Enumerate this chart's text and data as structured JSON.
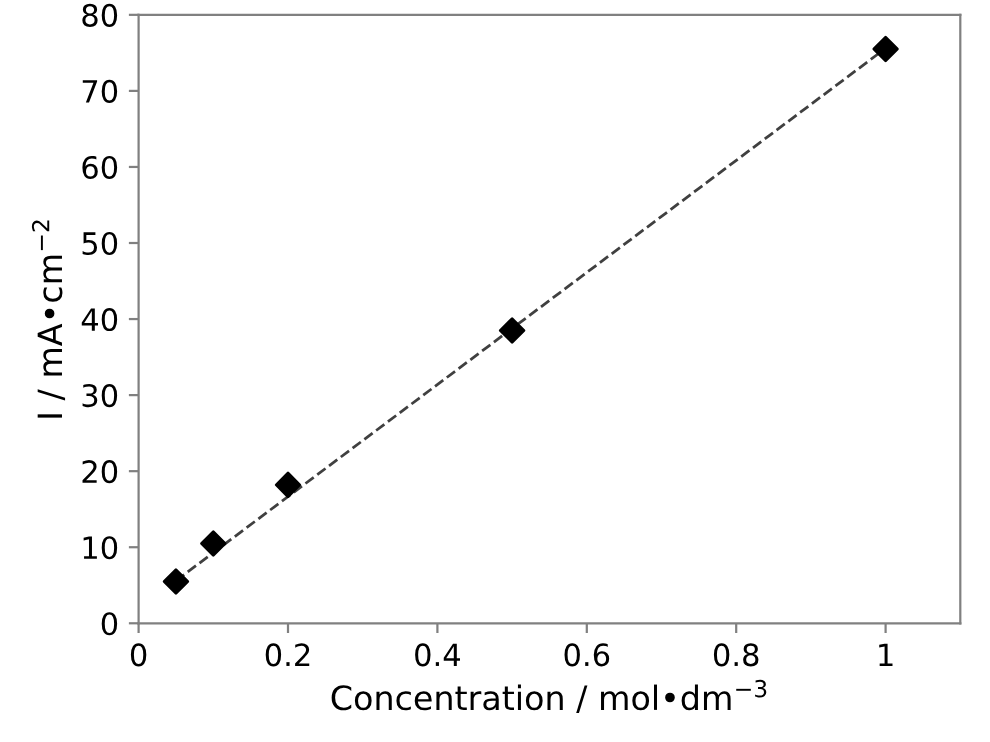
{
  "chart_data": {
    "type": "scatter",
    "xlabel": "Concentration / mol•dm$^{−3}$",
    "ylabel": "I / mA•cm$^{−2}$",
    "x": [
      0.05,
      0.1,
      0.2,
      0.5,
      1.0
    ],
    "series": [
      {
        "color": "#000000",
        "marker": "diamond",
        "values": [
          5.5,
          10.5,
          18.2,
          38.5,
          75.5
        ]
      },
      {
        "type": "line",
        "color": "#404040",
        "line_style": "dashed",
        "marker": "none",
        "x": [
          0.05,
          1.0
        ],
        "values": [
          5.6,
          75.6
        ]
      }
    ],
    "xlim": [
      0,
      1.1
    ],
    "xticks": [
      0,
      0.2,
      0.4,
      0.6,
      0.8,
      1
    ],
    "ylim": [
      0,
      80
    ],
    "yticks": [
      0,
      10,
      20,
      30,
      40,
      50,
      60,
      70,
      80
    ],
    "grid": false,
    "legend": false
  }
}
